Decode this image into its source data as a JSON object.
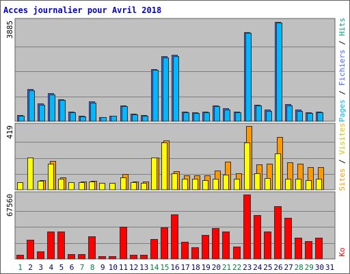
{
  "title": "Acces journalier pour Avril 2018",
  "colors": {
    "title": "#0000cc",
    "frame_bg": "#ffffff",
    "plot_bg": "#c0c0c0",
    "border": "#606060",
    "grid": "#7e7e7e",
    "pages": "#4466ff",
    "files": "#00b8ff",
    "visits": "#ff9900",
    "sites": "#ffff00",
    "hits": "#ff0000",
    "weekend_label": "#008040",
    "weekday_label": "#000066"
  },
  "panel_labels": {
    "top": {
      "max": "3885",
      "pages": "Pages",
      "sep1": " / ",
      "files": "Fichiers",
      "sep2": " / ",
      "hits": "Hits"
    },
    "middle": {
      "max": "419",
      "sites": "Sites",
      "sep": " / ",
      "visits": "Visites"
    },
    "bottom": {
      "max": "67560",
      "ko": "Ko"
    }
  },
  "chart_data": {
    "type": "bar",
    "title": "Acces journalier pour Avril 2018",
    "categories": [
      "1",
      "2",
      "3",
      "4",
      "5",
      "6",
      "7",
      "8",
      "9",
      "10",
      "11",
      "12",
      "13",
      "14",
      "15",
      "16",
      "17",
      "18",
      "19",
      "20",
      "21",
      "22",
      "23",
      "24",
      "25",
      "26",
      "27",
      "28",
      "29",
      "30",
      "31"
    ],
    "weekend_days": [
      "1",
      "7",
      "8",
      "14",
      "15",
      "21",
      "22",
      "28",
      "29"
    ],
    "panels": [
      {
        "name": "top",
        "ymax": 3885,
        "series": [
          {
            "name": "Pages",
            "values": [
              240,
              1260,
              680,
              1090,
              860,
              380,
              200,
              770,
              160,
              220,
              610,
              280,
              240,
              2030,
              2530,
              2580,
              370,
              350,
              380,
              620,
              500,
              380,
              3470,
              640,
              440,
              3870,
              660,
              440,
              340,
              380,
              null
            ]
          },
          {
            "name": "Fichiers",
            "values": [
              210,
              1210,
              650,
              1050,
              830,
              350,
              180,
              730,
              150,
              210,
              580,
              260,
              220,
              1990,
              2480,
              2540,
              340,
              320,
              350,
              580,
              460,
              350,
              3420,
              610,
              410,
              3820,
              620,
              410,
              310,
              350,
              null
            ]
          }
        ]
      },
      {
        "name": "middle",
        "ymax": 419,
        "series": [
          {
            "name": "Visites",
            "values": [
              50,
              210,
              60,
              170,
              70,
              50,
              50,
              55,
              45,
              45,
              80,
              50,
              45,
              210,
              310,
              110,
              70,
              70,
              65,
              70,
              100,
              70,
              310,
              110,
              75,
              240,
              70,
              70,
              65,
              70,
              null
            ]
          },
          {
            "name": "Sites",
            "values": [
              null,
              null,
              65,
              190,
              80,
              null,
              55,
              60,
              null,
              null,
              105,
              55,
              55,
              210,
              325,
              120,
              95,
              95,
              95,
              125,
              185,
              110,
              419,
              165,
              170,
              345,
              180,
              170,
              150,
              150,
              null
            ]
          }
        ]
      },
      {
        "name": "bottom",
        "ymax": 67560,
        "series": [
          {
            "name": "Ko",
            "values": [
              4000,
              20000,
              8000,
              29000,
              29000,
              5000,
              5000,
              24000,
              3000,
              3000,
              34000,
              4000,
              4000,
              21000,
              33000,
              47000,
              18000,
              12000,
              25000,
              32000,
              29000,
              13000,
              67560,
              46000,
              29000,
              55000,
              43000,
              22000,
              19000,
              22000,
              null
            ]
          }
        ]
      }
    ]
  }
}
